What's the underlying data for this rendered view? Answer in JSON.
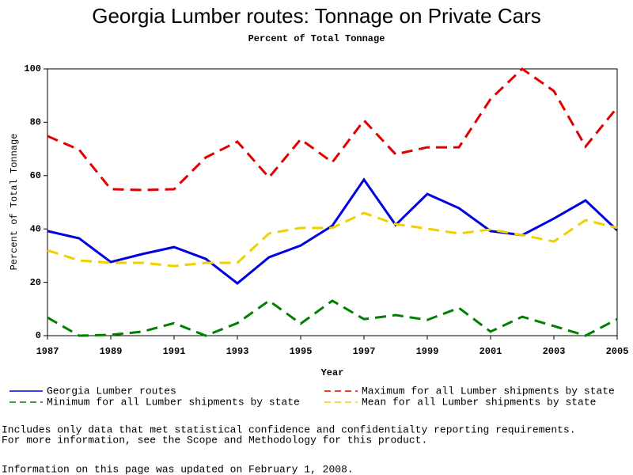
{
  "chart_data": {
    "type": "line",
    "title": "Georgia Lumber routes: Tonnage on Private Cars",
    "subtitle": "Percent of Total Tonnage",
    "x_label": "Year",
    "y_label": "Percent of Total Tonnage",
    "x": [
      1987,
      1988,
      1989,
      1990,
      1991,
      1992,
      1993,
      1994,
      1995,
      1996,
      1997,
      1998,
      1999,
      2000,
      2001,
      2002,
      2003,
      2004,
      2005
    ],
    "xlim": [
      1987,
      2005
    ],
    "xticks": [
      1987,
      1989,
      1991,
      1993,
      1995,
      1997,
      1999,
      2001,
      2003,
      2005
    ],
    "ylim": [
      0,
      100
    ],
    "yticks": [
      0,
      20,
      40,
      60,
      80,
      100
    ],
    "series": [
      {
        "name": "Georgia Lumber routes",
        "color": "#0000e0",
        "line_style": "solid",
        "values": [
          39.2,
          36.5,
          27.6,
          30.6,
          33.2,
          28.8,
          19.6,
          29.4,
          33.8,
          41.2,
          58.5,
          41.5,
          53.1,
          47.8,
          39.2,
          37.7,
          43.9,
          50.7,
          39.5
        ]
      },
      {
        "name": "Maximum for all Lumber shipments by state",
        "color": "#e00000",
        "line_style": "dashed",
        "values": [
          74.8,
          69.7,
          54.9,
          54.6,
          54.9,
          66.8,
          72.7,
          59.3,
          73.6,
          65.0,
          80.7,
          68.0,
          70.6,
          70.6,
          88.7,
          100,
          91.7,
          70.9,
          85.5
        ]
      },
      {
        "name": "Minimum for all Lumber shipments by state",
        "color": "#008000",
        "line_style": "dashed",
        "values": [
          6.8,
          0,
          0.3,
          1.5,
          4.7,
          0,
          4.7,
          13.1,
          4.5,
          13.1,
          6.2,
          7.7,
          5.9,
          10.4,
          1.5,
          7.1,
          3.6,
          0,
          6.2
        ]
      },
      {
        "name": "Mean for all Lumber shipments by state",
        "color": "#f0d000",
        "line_style": "dashed",
        "values": [
          32.0,
          28.2,
          27.3,
          27.3,
          26.1,
          27.3,
          27.3,
          38.3,
          40.4,
          40.4,
          46.0,
          41.8,
          40.1,
          38.3,
          39.8,
          37.7,
          35.3,
          43.3,
          40.4
        ]
      }
    ],
    "notes": [
      "Includes only data that met statistical confidence and confidentialty reporting requirements.",
      "For more information, see the Scope and Methodology for this product.",
      "Information on this page was updated on February 1, 2008."
    ]
  }
}
